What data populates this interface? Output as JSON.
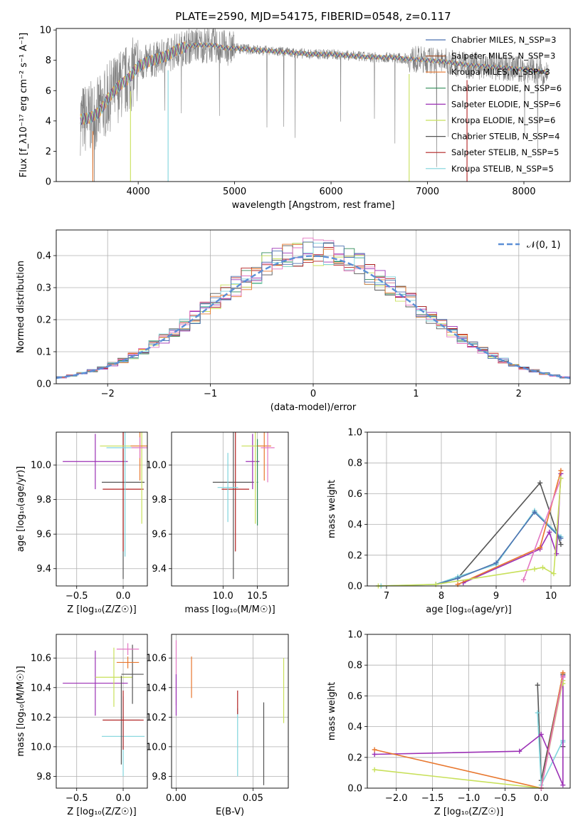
{
  "title": "PLATE=2590, MJD=54175, FIBERID=0548, z=0.117",
  "colors": {
    "chabrier_miles": "#4c72b0",
    "salpeter_miles": "#a0522d",
    "kroupa_miles": "#e8772e",
    "chabrier_elodie": "#2e8b57",
    "salpeter_elodie": "#9b30b5",
    "kroupa_elodie": "#c8e05a",
    "chabrier_stelib": "#555555",
    "salpeter_stelib": "#b22222",
    "kroupa_stelib": "#7fd4dc",
    "spectrum_data": "#808080",
    "normal_curve": "#5b8fd6",
    "pink": "#e377c2",
    "grid": "#b0b0b0"
  },
  "chart_data": [
    {
      "id": "spectrum",
      "type": "line",
      "xlabel": "wavelength [Angstrom, rest frame]",
      "ylabel": "Flux [f_λ10⁻¹⁷ erg cm⁻² s⁻¹ A⁻¹]",
      "xlim": [
        3150,
        8480
      ],
      "ylim": [
        0,
        10.1
      ],
      "xticks": [
        "4000",
        "5000",
        "6000",
        "7000",
        "8000"
      ],
      "yticks": [
        "0",
        "2",
        "4",
        "6",
        "8",
        "10"
      ],
      "grid": false,
      "legend_position": "top-right",
      "legend": [
        {
          "label": "Chabrier MILES, N_SSP=3",
          "color_key": "chabrier_miles"
        },
        {
          "label": "Salpeter MILES, N_SSP=3",
          "color_key": "salpeter_miles"
        },
        {
          "label": "Kroupa MILES, N_SSP=3",
          "color_key": "kroupa_miles"
        },
        {
          "label": "Chabrier ELODIE, N_SSP=6",
          "color_key": "chabrier_elodie"
        },
        {
          "label": "Salpeter ELODIE, N_SSP=6",
          "color_key": "salpeter_elodie"
        },
        {
          "label": "Kroupa ELODIE, N_SSP=6",
          "color_key": "kroupa_elodie"
        },
        {
          "label": "Chabrier STELIB, N_SSP=4",
          "color_key": "chabrier_stelib"
        },
        {
          "label": "Salpeter STELIB, N_SSP=5",
          "color_key": "salpeter_stelib"
        },
        {
          "label": "Kroupa STELIB, N_SSP=5",
          "color_key": "kroupa_stelib"
        }
      ],
      "continuum": {
        "x": [
          3400,
          3500,
          3600,
          3700,
          3800,
          3900,
          4000,
          4100,
          4200,
          4300,
          4400,
          4500,
          4600,
          4700,
          4800,
          4900,
          5000,
          5200,
          5400,
          5600,
          5800,
          6000,
          6200,
          6400,
          6600,
          6800,
          7000,
          7200,
          7400,
          7600,
          7800,
          8000,
          8250
        ],
        "y": [
          4.1,
          4.2,
          4.6,
          5.6,
          6.3,
          6.8,
          7.6,
          7.9,
          8.1,
          8.3,
          8.7,
          8.9,
          9.0,
          9.0,
          9.0,
          8.8,
          8.8,
          8.7,
          8.6,
          8.5,
          8.4,
          8.4,
          8.3,
          8.2,
          8.2,
          8.1,
          8.0,
          7.9,
          7.7,
          7.6,
          7.5,
          7.4,
          7.2
        ]
      },
      "model_drops_x": [
        3530,
        3920,
        4310,
        6810,
        7410
      ]
    },
    {
      "id": "residuals",
      "type": "bar",
      "xlabel": "(data-model)/error",
      "ylabel": "Normed distribution",
      "xlim": [
        -2.5,
        2.5
      ],
      "ylim": [
        0,
        0.48
      ],
      "xticks": [
        "−2",
        "−1",
        "0",
        "1",
        "2"
      ],
      "yticks": [
        "0.0",
        "0.1",
        "0.2",
        "0.3",
        "0.4"
      ],
      "grid": true,
      "legend_position": "top-right",
      "legend": [
        {
          "label": "𝒩(0, 1)",
          "color_key": "normal_curve"
        }
      ],
      "bin_width": 0.1,
      "normal": {
        "mean": 0,
        "sigma": 1
      }
    },
    {
      "id": "age-vs-Z",
      "type": "scatter",
      "xlabel": "Z [log₁₀(Z/Z☉)]",
      "ylabel": "age [log₁₀(age/yr)]",
      "xlim": [
        -0.72,
        0.26
      ],
      "ylim": [
        9.3,
        10.19
      ],
      "xticks": [
        "−0.5",
        "0.0"
      ],
      "xtick_values": [
        -0.5,
        0.0
      ],
      "yticks": [
        "9.4",
        "9.6",
        "9.8",
        "10.0"
      ],
      "ytick_values": [
        9.4,
        9.6,
        9.8,
        10.0
      ],
      "grid": true,
      "points": [
        {
          "color_key": "salpeter_elodie",
          "x": -0.3,
          "xerr": 0.35,
          "y": 10.02,
          "yerr": 0.16
        },
        {
          "color_key": "chabrier_stelib",
          "x": 0.0,
          "xerr": 0.23,
          "y": 9.9,
          "yerr": 0.56
        },
        {
          "color_key": "salpeter_stelib",
          "x": 0.0,
          "xerr": 0.22,
          "y": 9.86,
          "yerr": 0.36
        },
        {
          "color_key": "kroupa_elodie",
          "x": 0.2,
          "xerr": 0.45,
          "y": 10.11,
          "yerr": 0.45
        },
        {
          "color_key": "kroupa_stelib",
          "x": 0.02,
          "xerr": 0.2,
          "y": 10.1,
          "yerr": 0.63
        },
        {
          "color_key": "kroupa_miles",
          "x": 0.18,
          "xerr": 0.1,
          "y": 10.11,
          "yerr": 0.2
        },
        {
          "color_key": "pink",
          "x": 0.18,
          "xerr": 0.09,
          "y": 10.1,
          "yerr": 0.06
        }
      ]
    },
    {
      "id": "age-vs-mass",
      "type": "scatter",
      "xlabel": "mass [log₁₀(M/M☉)]",
      "ylabel": "",
      "xlim": [
        9.25,
        10.95
      ],
      "ylim": [
        9.3,
        10.19
      ],
      "xticks": [
        "10.0",
        "10.5"
      ],
      "xtick_values": [
        10.0,
        10.5
      ],
      "yticks": [
        "9.4",
        "9.6",
        "9.8",
        "10.0"
      ],
      "ytick_values": [
        9.4,
        9.6,
        9.8,
        10.0
      ],
      "grid": true,
      "points": [
        {
          "color_key": "chabrier_stelib",
          "x": 10.15,
          "xerr": 0.3,
          "y": 9.9,
          "yerr": 0.56
        },
        {
          "color_key": "salpeter_stelib",
          "x": 10.18,
          "xerr": 0.2,
          "y": 9.86,
          "yerr": 0.36
        },
        {
          "color_key": "kroupa_stelib",
          "x": 10.07,
          "xerr": 0.15,
          "y": 9.87,
          "yerr": 0.2
        },
        {
          "color_key": "salpeter_elodie",
          "x": 10.43,
          "xerr": 0.1,
          "y": 10.02,
          "yerr": 0.16
        },
        {
          "color_key": "kroupa_elodie",
          "x": 10.47,
          "xerr": 0.2,
          "y": 10.11,
          "yerr": 0.45
        },
        {
          "color_key": "chabrier_elodie",
          "x": 10.5,
          "xerr": 0.01,
          "y": 9.9,
          "yerr": 0.25
        },
        {
          "color_key": "kroupa_miles",
          "x": 10.6,
          "xerr": 0.1,
          "y": 10.11,
          "yerr": 0.2
        },
        {
          "color_key": "pink",
          "x": 10.65,
          "xerr": 0.1,
          "y": 10.1,
          "yerr": 0.2
        }
      ]
    },
    {
      "id": "weight-vs-age",
      "type": "line",
      "xlabel": "age [log₁₀(age/yr)]",
      "ylabel": "mass weight",
      "xlim": [
        6.65,
        10.35
      ],
      "ylim": [
        0,
        1.0
      ],
      "xticks": [
        "7",
        "8",
        "9",
        "10"
      ],
      "xtick_values": [
        7,
        8,
        9,
        10
      ],
      "yticks": [
        "0.0",
        "0.2",
        "0.4",
        "0.6",
        "0.8",
        "1.0"
      ],
      "ytick_values": [
        0,
        0.2,
        0.4,
        0.6,
        0.8,
        1.0
      ],
      "grid": true,
      "series": [
        {
          "color_key": "chabrier_stelib",
          "x": [
            7.9,
            8.3,
            9.8,
            10.18
          ],
          "y": [
            0.01,
            0.05,
            0.67,
            0.27
          ]
        },
        {
          "color_key": "kroupa_stelib",
          "x": [
            6.9,
            7.9,
            8.3,
            9.0,
            9.7,
            10.18
          ],
          "y": [
            0.0,
            0.01,
            0.06,
            0.14,
            0.49,
            0.32
          ]
        },
        {
          "color_key": "chabrier_miles",
          "x": [
            7.9,
            8.3,
            9.0,
            9.7,
            10.18
          ],
          "y": [
            0.01,
            0.05,
            0.15,
            0.48,
            0.31
          ]
        },
        {
          "color_key": "salpeter_elodie",
          "x": [
            8.4,
            9.8,
            9.97,
            10.1,
            10.18
          ],
          "y": [
            0.02,
            0.24,
            0.35,
            0.21,
            0.73
          ]
        },
        {
          "color_key": "kroupa_miles",
          "x": [
            8.3,
            9.8,
            10.18
          ],
          "y": [
            0.01,
            0.25,
            0.75
          ]
        },
        {
          "color_key": "pink",
          "x": [
            9.5,
            10.18
          ],
          "y": [
            0.04,
            0.7
          ]
        },
        {
          "color_key": "kroupa_elodie",
          "x": [
            6.85,
            7.9,
            9.7,
            9.85,
            10.05,
            10.18
          ],
          "y": [
            0.0,
            0.01,
            0.11,
            0.12,
            0.08,
            0.7
          ]
        }
      ]
    },
    {
      "id": "mass-vs-Z",
      "type": "scatter",
      "xlabel": "Z [log₁₀(Z/Z☉)]",
      "ylabel": "mass [log₁₀(M/M☉)]",
      "xlim": [
        -0.72,
        0.26
      ],
      "ylim": [
        9.72,
        10.76
      ],
      "xticks": [
        "−0.5",
        "0.0"
      ],
      "xtick_values": [
        -0.5,
        0.0
      ],
      "yticks": [
        "9.8",
        "10.0",
        "10.2",
        "10.4",
        "10.6"
      ],
      "ytick_values": [
        9.8,
        10.0,
        10.2,
        10.4,
        10.6
      ],
      "grid": true,
      "points": [
        {
          "color_key": "salpeter_elodie",
          "x": -0.3,
          "xerr": 0.35,
          "y": 10.43,
          "yerr": 0.22
        },
        {
          "color_key": "kroupa_elodie",
          "x": -0.1,
          "xerr": 0.2,
          "y": 10.47,
          "yerr": 0.2
        },
        {
          "color_key": "chabrier_stelib",
          "x": 0.1,
          "xerr": 0.12,
          "y": 10.49,
          "yerr": 0.2
        },
        {
          "color_key": "pink",
          "x": 0.05,
          "xerr": 0.12,
          "y": 10.66,
          "yerr": 0.04
        },
        {
          "color_key": "kroupa_miles",
          "x": 0.05,
          "xerr": 0.12,
          "y": 10.57,
          "yerr": 0.04
        },
        {
          "color_key": "kroupa_stelib",
          "x": 0.0,
          "xerr": 0.23,
          "y": 10.07,
          "yerr": 0.27
        },
        {
          "color_key": "chabrier_stelib",
          "x": -0.02,
          "xerr": 0.2,
          "y": 10.18,
          "yerr": 0.3
        },
        {
          "color_key": "salpeter_stelib",
          "x": 0.0,
          "xerr": 0.22,
          "y": 10.18,
          "yerr": 0.2
        }
      ]
    },
    {
      "id": "mass-vs-ebv",
      "type": "scatter",
      "xlabel": "E(B-V)",
      "ylabel": "",
      "xlim": [
        -0.003,
        0.073
      ],
      "ylim": [
        9.72,
        10.76
      ],
      "xticks": [
        "0.00",
        "0.05"
      ],
      "xtick_values": [
        0.0,
        0.05
      ],
      "yticks": [
        "9.8",
        "10.0",
        "10.2",
        "10.4",
        "10.6"
      ],
      "ytick_values": [
        9.8,
        10.0,
        10.2,
        10.4,
        10.6
      ],
      "grid": true,
      "points": [
        {
          "color_key": "pink",
          "x": 0.0,
          "xerr": 0,
          "y": 10.5,
          "yerr": 0.22
        },
        {
          "color_key": "salpeter_elodie",
          "x": 0.0,
          "xerr": 0,
          "y": 10.35,
          "yerr": 0.14
        },
        {
          "color_key": "kroupa_miles",
          "x": 0.01,
          "xerr": 0,
          "y": 10.47,
          "yerr": 0.14
        },
        {
          "color_key": "kroupa_stelib",
          "x": 0.04,
          "xerr": 0,
          "y": 10.03,
          "yerr": 0.23
        },
        {
          "color_key": "salpeter_stelib",
          "x": 0.04,
          "xerr": 0,
          "y": 10.3,
          "yerr": 0.08
        },
        {
          "color_key": "chabrier_stelib",
          "x": 0.057,
          "xerr": 0,
          "y": 10.02,
          "yerr": 0.28
        },
        {
          "color_key": "kroupa_elodie",
          "x": 0.07,
          "xerr": 0,
          "y": 10.38,
          "yerr": 0.22
        }
      ]
    },
    {
      "id": "weight-vs-Z",
      "type": "line",
      "xlabel": "Z [log₁₀(Z/Z☉)]",
      "ylabel": "mass weight",
      "xlim": [
        -2.4,
        0.4
      ],
      "ylim": [
        0,
        1.0
      ],
      "xticks": [
        "−2.0",
        "−1.5",
        "−1.0",
        "−0.5",
        "0.0"
      ],
      "xtick_values": [
        -2.0,
        -1.5,
        -1.0,
        -0.5,
        0.0
      ],
      "yticks": [
        "0.0",
        "0.2",
        "0.4",
        "0.6",
        "0.8",
        "1.0"
      ],
      "ytick_values": [
        0,
        0.2,
        0.4,
        0.6,
        0.8,
        1.0
      ],
      "grid": true,
      "series": [
        {
          "color_key": "chabrier_stelib",
          "x": [
            -0.05,
            0.0,
            0.3,
            0.3
          ],
          "y": [
            0.67,
            0.05,
            0.74,
            0.27
          ]
        },
        {
          "color_key": "kroupa_stelib",
          "x": [
            -0.05,
            0.0,
            0.3,
            0.3
          ],
          "y": [
            0.49,
            0.02,
            0.31,
            0.3
          ]
        },
        {
          "color_key": "salpeter_elodie",
          "x": [
            -2.3,
            -0.3,
            0.0,
            0.3,
            0.3
          ],
          "y": [
            0.22,
            0.24,
            0.35,
            0.02,
            0.73
          ]
        },
        {
          "color_key": "kroupa_miles",
          "x": [
            -2.3,
            0.0,
            0.3
          ],
          "y": [
            0.25,
            0.0,
            0.75
          ]
        },
        {
          "color_key": "kroupa_elodie",
          "x": [
            -2.3,
            0.0,
            0.3,
            0.3
          ],
          "y": [
            0.12,
            0.0,
            0.7,
            0.68
          ]
        },
        {
          "color_key": "pink",
          "x": [
            0.0,
            0.3
          ],
          "y": [
            0.0,
            0.72
          ]
        }
      ]
    }
  ]
}
